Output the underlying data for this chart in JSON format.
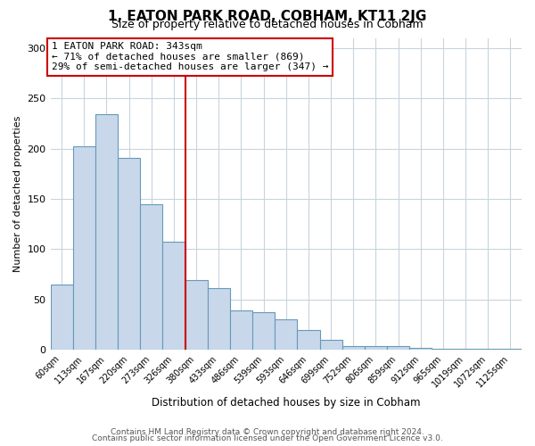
{
  "title": "1, EATON PARK ROAD, COBHAM, KT11 2JG",
  "subtitle": "Size of property relative to detached houses in Cobham",
  "xlabel": "Distribution of detached houses by size in Cobham",
  "ylabel": "Number of detached properties",
  "bar_labels": [
    "60sqm",
    "113sqm",
    "167sqm",
    "220sqm",
    "273sqm",
    "326sqm",
    "380sqm",
    "433sqm",
    "486sqm",
    "539sqm",
    "593sqm",
    "646sqm",
    "699sqm",
    "752sqm",
    "806sqm",
    "859sqm",
    "912sqm",
    "965sqm",
    "1019sqm",
    "1072sqm",
    "1125sqm"
  ],
  "bar_values": [
    65,
    202,
    234,
    191,
    145,
    107,
    69,
    61,
    39,
    37,
    30,
    20,
    10,
    4,
    4,
    4,
    2,
    1,
    1,
    1,
    1
  ],
  "bar_color": "#c8d8ea",
  "bar_edge_color": "#6699bb",
  "vline_x": 5.5,
  "vline_color": "#cc0000",
  "annotation_title": "1 EATON PARK ROAD: 343sqm",
  "annotation_line1": "← 71% of detached houses are smaller (869)",
  "annotation_line2": "29% of semi-detached houses are larger (347) →",
  "annotation_box_color": "#ffffff",
  "annotation_box_edge": "#cc0000",
  "ylim": [
    0,
    310
  ],
  "yticks": [
    0,
    50,
    100,
    150,
    200,
    250,
    300
  ],
  "footer_line1": "Contains HM Land Registry data © Crown copyright and database right 2024.",
  "footer_line2": "Contains public sector information licensed under the Open Government Licence v3.0.",
  "bg_color": "#ffffff",
  "grid_color": "#c8d4dc"
}
